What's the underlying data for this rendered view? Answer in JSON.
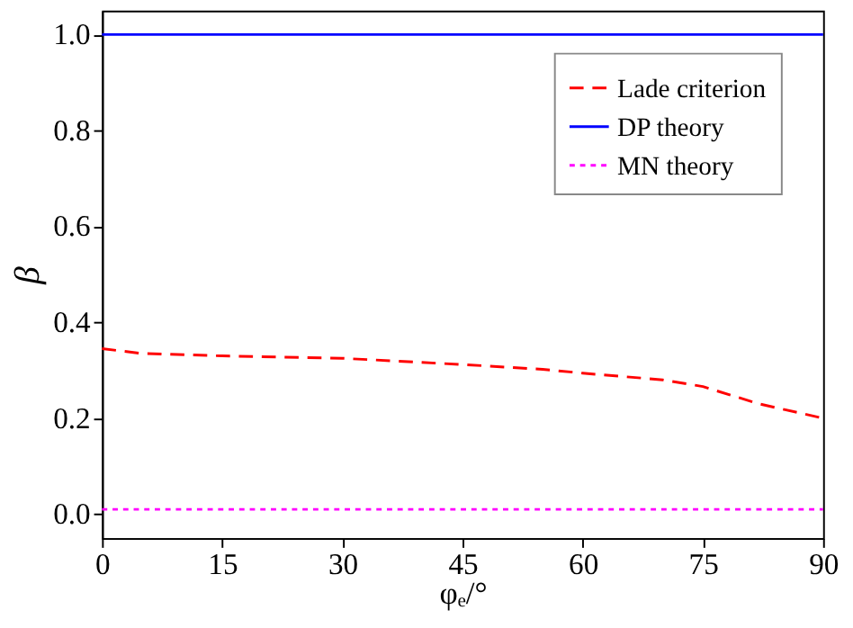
{
  "chart_data": {
    "type": "line",
    "xlabel": "φₑ/°",
    "ylabel": "β",
    "xlim": [
      0,
      90
    ],
    "xticks": [
      0,
      15,
      30,
      45,
      60,
      75,
      90
    ],
    "ylim": [
      -0.05,
      1.05
    ],
    "yticks": [
      {
        "value": 0,
        "label": "0.0"
      },
      {
        "value": 0.2,
        "label": "0.2"
      },
      {
        "value": 0.4,
        "label": "0.4"
      },
      {
        "value": 0.6,
        "label": "0.6"
      },
      {
        "value": 0.8,
        "label": "0.8"
      },
      {
        "value": 1,
        "label": "1.0"
      }
    ],
    "grid": false,
    "legend": "top right",
    "marker": "none",
    "series": [
      {
        "name": "Lade criterion",
        "color": "#ff0000",
        "line_style": "dashed",
        "x": [
          0,
          5,
          15,
          30,
          45,
          55,
          60,
          70,
          75,
          82,
          90
        ],
        "values": [
          0.345,
          0.335,
          0.33,
          0.325,
          0.312,
          0.302,
          0.294,
          0.28,
          0.266,
          0.23,
          0.2
        ]
      },
      {
        "name": "DP theory",
        "color": "#0000ff",
        "line_style": "solid",
        "x": [
          0,
          90
        ],
        "values": [
          1,
          1
        ]
      },
      {
        "name": "MN theory",
        "color": "#ff00ff",
        "line_style": "dotted",
        "x": [
          0,
          90
        ],
        "values": [
          0.01,
          0.01
        ]
      }
    ]
  }
}
